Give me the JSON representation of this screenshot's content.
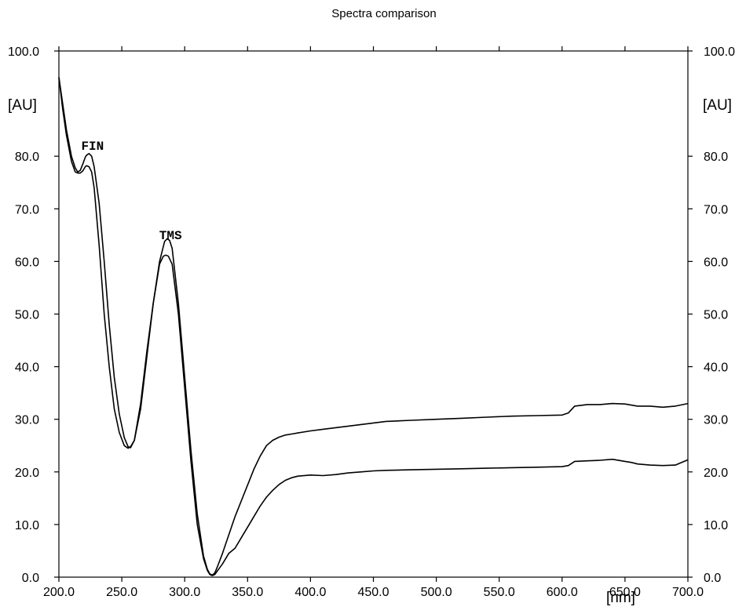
{
  "chart_data": {
    "type": "line",
    "title": "Spectra comparison",
    "xlabel": "[nm]",
    "ylabel": "[AU]",
    "ylabel_right": "[AU]",
    "xlim": [
      200,
      700
    ],
    "ylim": [
      0,
      100
    ],
    "x_ticks": [
      "200.0",
      "250.0",
      "300.0",
      "350.0",
      "400.0",
      "450.0",
      "500.0",
      "550.0",
      "600.0",
      "650.0",
      "700.0"
    ],
    "y_ticks": [
      "0.0",
      "10.0",
      "20.0",
      "30.0",
      "40.0",
      "50.0",
      "60.0",
      "70.0",
      "80.0",
      "100.0"
    ],
    "y_ticks_right": [
      "0.0",
      "10.0",
      "20.0",
      "30.0",
      "40.0",
      "50.0",
      "60.0",
      "70.0",
      "80.0",
      "100.0"
    ],
    "grid": false,
    "legend": "none",
    "annotations": [
      {
        "text": "FIN",
        "x": 224,
        "y": 82
      },
      {
        "text": "TMS",
        "x": 286,
        "y": 65
      }
    ],
    "series": [
      {
        "label": "FIN",
        "x": [
          200,
          203,
          206,
          210,
          213,
          215,
          217,
          219,
          221,
          222,
          224,
          226,
          228,
          232,
          236,
          240,
          244,
          248,
          252,
          255,
          257,
          260,
          265,
          270,
          275,
          280,
          284,
          286,
          288,
          290,
          295,
          300,
          305,
          310,
          315,
          318,
          320,
          322,
          324,
          326,
          330,
          335,
          340,
          345,
          350,
          355,
          360,
          365,
          370,
          375,
          380,
          385,
          390,
          400,
          410,
          420,
          430,
          440,
          450,
          460,
          480,
          500,
          520,
          540,
          560,
          580,
          600,
          605,
          610,
          620,
          630,
          640,
          650,
          655,
          660,
          670,
          680,
          690,
          700
        ],
        "y": [
          95,
          90,
          85,
          80,
          77.8,
          77,
          77.3,
          78.5,
          79.8,
          80.2,
          80.5,
          80,
          78,
          71,
          60,
          48,
          38,
          31,
          26.5,
          24.8,
          24.6,
          26,
          32,
          42,
          52,
          60,
          63.8,
          64.3,
          64,
          62.5,
          52,
          38,
          24,
          12,
          4,
          1.5,
          0.6,
          0.4,
          0.8,
          2,
          4.5,
          8,
          11.5,
          14.5,
          17.5,
          20.5,
          23,
          25,
          26,
          26.6,
          27,
          27.2,
          27.4,
          27.8,
          28.1,
          28.4,
          28.7,
          29,
          29.3,
          29.6,
          29.8,
          30,
          30.2,
          30.4,
          30.6,
          30.7,
          30.8,
          31.2,
          32.5,
          32.8,
          32.8,
          33,
          32.9,
          32.7,
          32.5,
          32.5,
          32.3,
          32.5,
          33
        ]
      },
      {
        "label": "TMS",
        "x": [
          200,
          203,
          206,
          210,
          213,
          215,
          217,
          219,
          221,
          222,
          224,
          226,
          228,
          232,
          236,
          240,
          244,
          248,
          252,
          255,
          257,
          260,
          265,
          270,
          275,
          280,
          283,
          285,
          287,
          290,
          295,
          300,
          305,
          310,
          315,
          318,
          320,
          322,
          324,
          326,
          330,
          335,
          340,
          345,
          350,
          355,
          360,
          365,
          370,
          375,
          380,
          385,
          390,
          400,
          410,
          420,
          430,
          440,
          450,
          460,
          480,
          500,
          520,
          540,
          560,
          580,
          600,
          605,
          610,
          620,
          630,
          640,
          650,
          655,
          660,
          670,
          680,
          690,
          700
        ],
        "y": [
          95,
          89,
          84,
          79,
          77,
          76.8,
          76.8,
          77.2,
          78,
          78.2,
          78,
          77,
          74,
          63,
          50,
          40,
          32,
          27.5,
          25,
          24.5,
          24.8,
          26,
          33,
          43,
          52,
          59.5,
          61,
          61.2,
          61,
          59.5,
          50,
          36,
          22,
          10,
          3.5,
          1.3,
          0.5,
          0.3,
          0.5,
          1.2,
          2.5,
          4.5,
          5.5,
          7.5,
          9.5,
          11.5,
          13.5,
          15.2,
          16.5,
          17.6,
          18.4,
          18.9,
          19.2,
          19.4,
          19.3,
          19.5,
          19.8,
          20,
          20.2,
          20.3,
          20.4,
          20.5,
          20.6,
          20.7,
          20.8,
          20.9,
          21,
          21.2,
          22,
          22.1,
          22.2,
          22.4,
          22,
          21.8,
          21.5,
          21.3,
          21.2,
          21.3,
          22.3
        ]
      }
    ]
  }
}
